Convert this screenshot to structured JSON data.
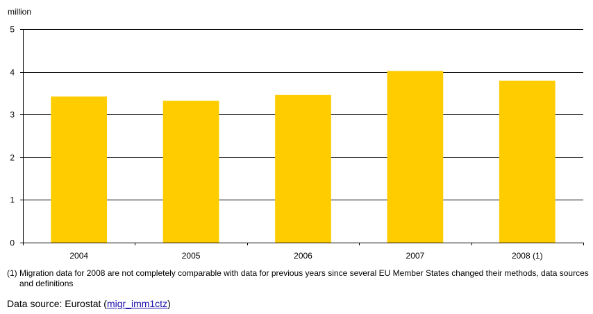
{
  "chart_data": {
    "type": "bar",
    "categories": [
      "2004",
      "2005",
      "2006",
      "2007",
      "2008 (1)"
    ],
    "values": [
      3.42,
      3.32,
      3.46,
      4.02,
      3.79
    ],
    "unit_label": "million",
    "title": "",
    "xlabel": "",
    "ylabel": "",
    "ylim": [
      0,
      5
    ],
    "yticks": [
      "0",
      "1",
      "2",
      "3",
      "4",
      "5"
    ],
    "grid": true,
    "bar_color": "#FFCC00",
    "grid_color": "#000000"
  },
  "footnote": "(1) Migration data for 2008 are not completely comparable with data for previous years since several EU Member States changed their methods, data sources and definitions",
  "source": {
    "prefix": "Data source: Eurostat (",
    "link_text": "migr_imm1ctz",
    "suffix": ")"
  }
}
